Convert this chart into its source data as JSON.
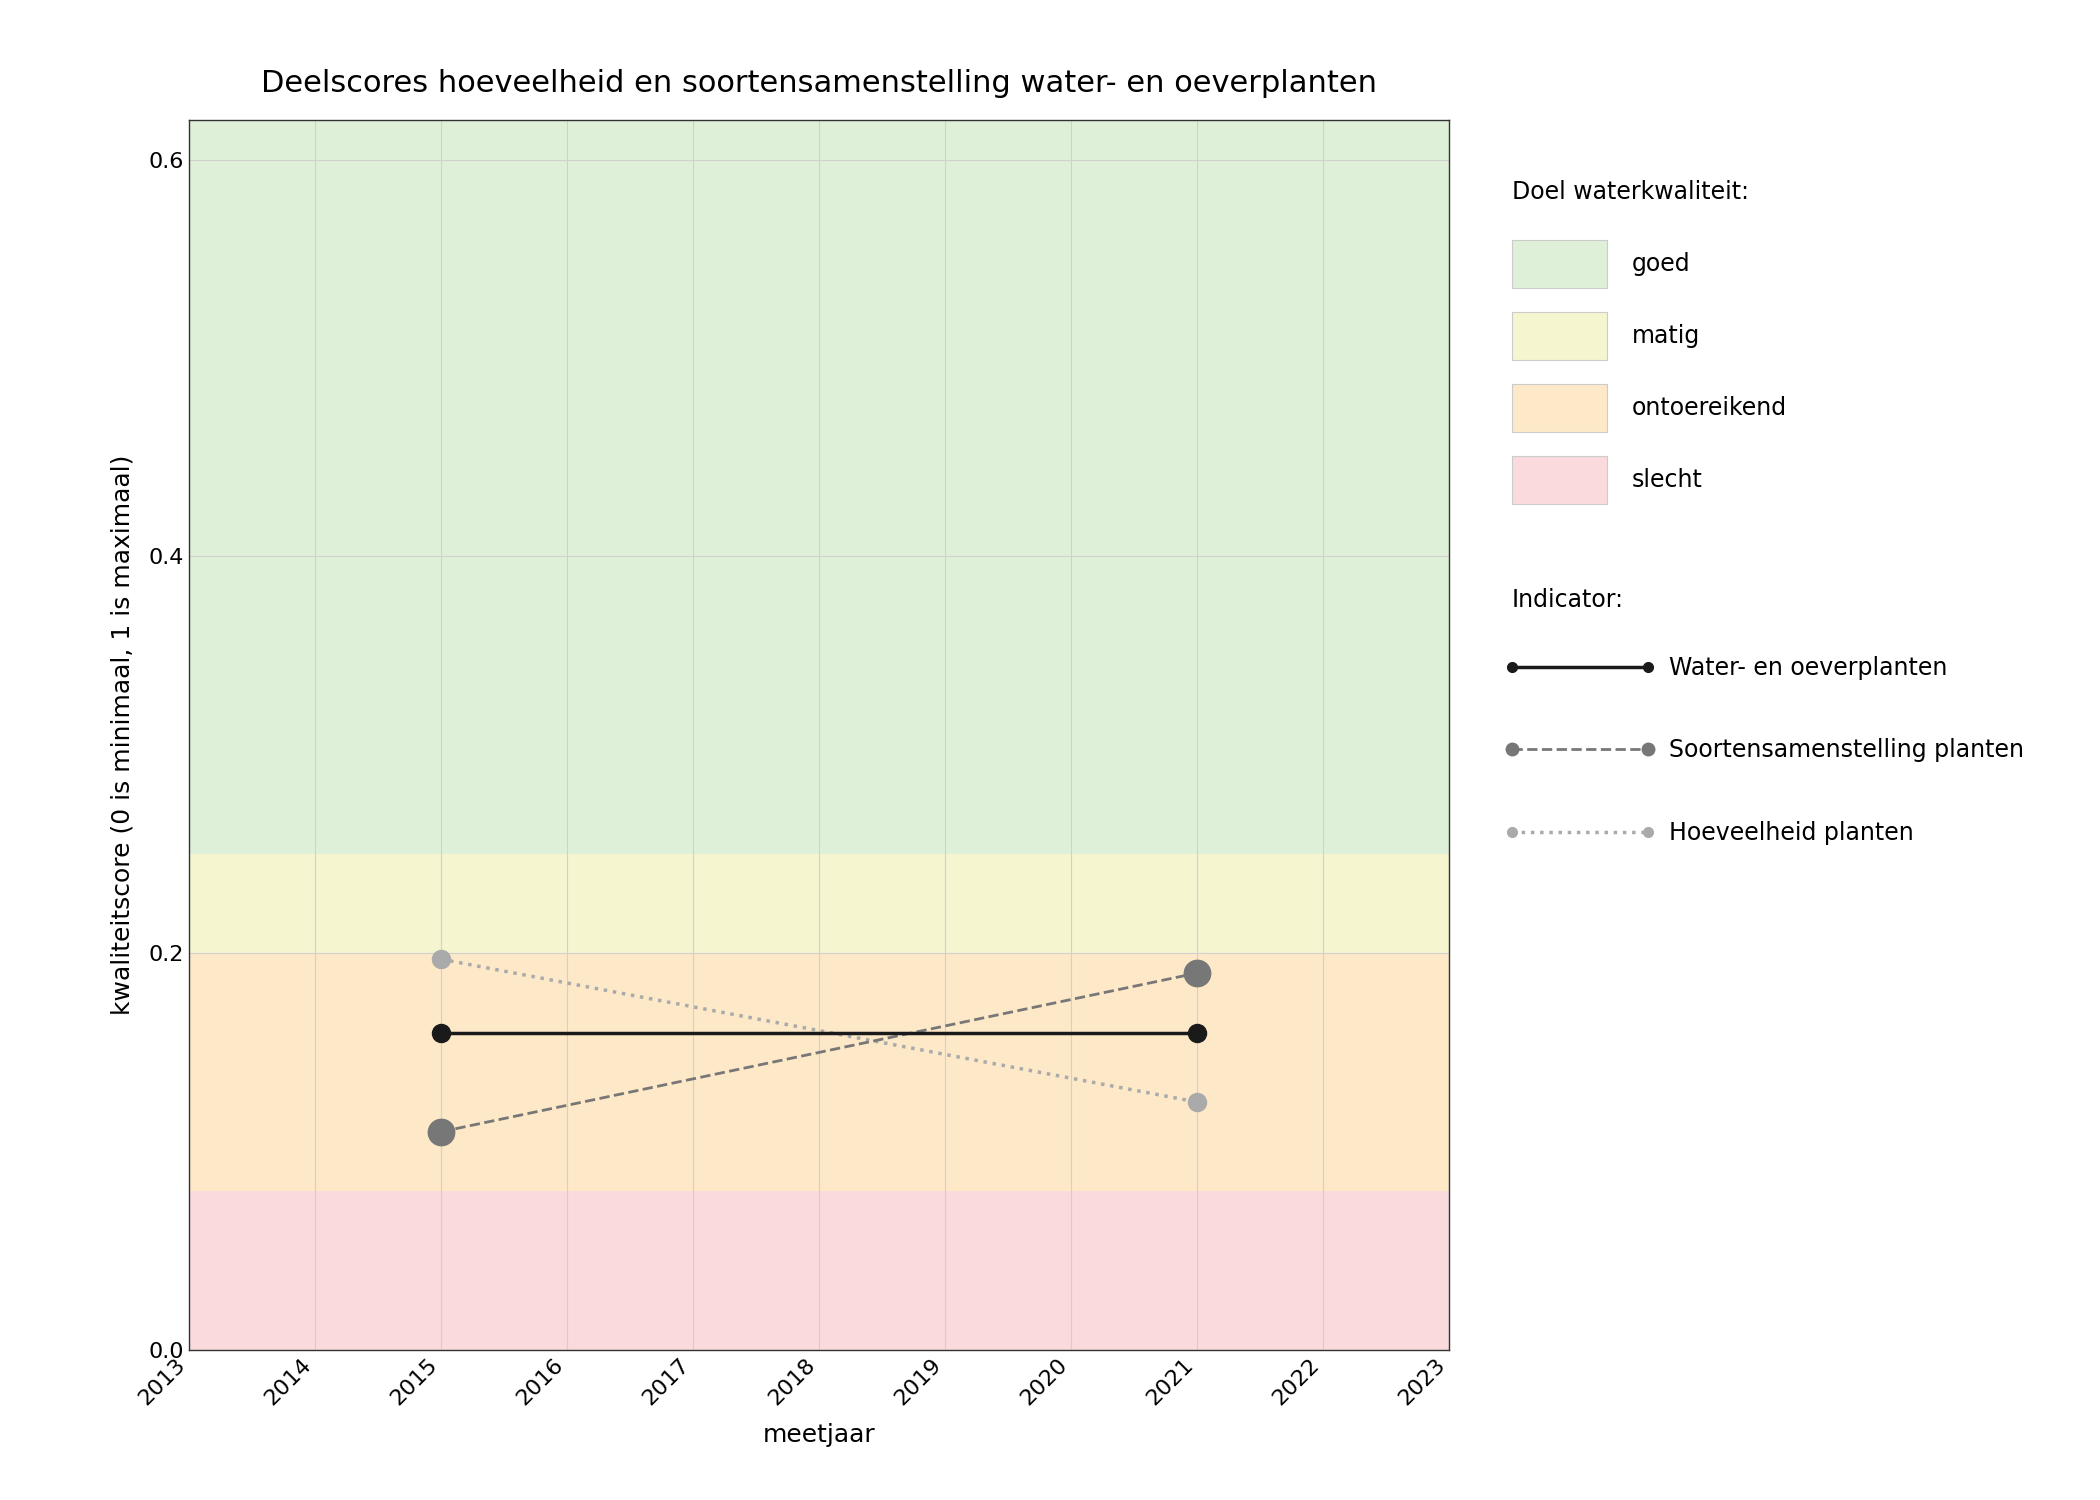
{
  "title": "Deelscores hoeveelheid en soortensamenstelling water- en oeverplanten",
  "xlabel": "meetjaar",
  "ylabel": "kwaliteitscore (0 is minimaal, 1 is maximaal)",
  "xlim": [
    2013,
    2023
  ],
  "ylim": [
    0.0,
    0.62
  ],
  "yticks": [
    0.0,
    0.2,
    0.4,
    0.6
  ],
  "xticks": [
    2013,
    2014,
    2015,
    2016,
    2017,
    2018,
    2019,
    2020,
    2021,
    2022,
    2023
  ],
  "zone_goed": {
    "ymin": 0.25,
    "ymax": 0.62,
    "color": "#dff0d8"
  },
  "zone_matig": {
    "ymin": 0.2,
    "ymax": 0.25,
    "color": "#f5f5d0"
  },
  "zone_ontoereikend": {
    "ymin": 0.08,
    "ymax": 0.2,
    "color": "#fde8c8"
  },
  "zone_slecht": {
    "ymin": 0.0,
    "ymax": 0.08,
    "color": "#fadadd"
  },
  "series_water": {
    "x": [
      2015,
      2021
    ],
    "y": [
      0.16,
      0.16
    ],
    "color": "#1a1a1a",
    "linestyle": "solid",
    "linewidth": 2.5,
    "markersize": 13,
    "label": "Water- en oeverplanten"
  },
  "series_soorten": {
    "x": [
      2015,
      2021
    ],
    "y": [
      0.11,
      0.19
    ],
    "color": "#777777",
    "linestyle": "dashed",
    "linewidth": 2.0,
    "markersize": 19,
    "label": "Soortensamenstelling planten"
  },
  "series_hoeveelheid": {
    "x": [
      2015,
      2021
    ],
    "y": [
      0.197,
      0.125
    ],
    "color": "#aaaaaa",
    "linestyle": "dotted",
    "linewidth": 2.5,
    "markersize": 13,
    "label": "Hoeveelheid planten"
  },
  "legend_doel_title": "Doel waterkwaliteit:",
  "legend_indicator_title": "Indicator:",
  "legend_items_doel": [
    {
      "label": "goed",
      "color": "#dff0d8"
    },
    {
      "label": "matig",
      "color": "#f5f5d0"
    },
    {
      "label": "ontoereikend",
      "color": "#fde8c8"
    },
    {
      "label": "slecht",
      "color": "#fadadd"
    }
  ],
  "grid_color": "#d0d0d0",
  "grid_linewidth": 0.8,
  "title_fontsize": 22,
  "axis_label_fontsize": 18,
  "tick_fontsize": 16,
  "legend_fontsize": 17
}
